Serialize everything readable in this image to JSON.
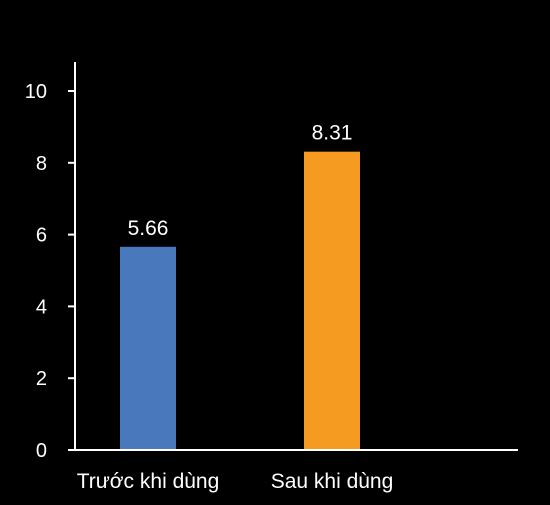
{
  "chart_data": {
    "type": "bar",
    "title": "",
    "xlabel": "",
    "ylabel": "",
    "categories": [
      "Trước khi dùng",
      "Sau khi dùng"
    ],
    "values": [
      5.66,
      8.31
    ],
    "data_labels": [
      "5.66",
      "8.31"
    ],
    "ylim": [
      0,
      10
    ],
    "yticks": [
      0,
      2,
      4,
      6,
      8,
      10
    ],
    "bar_colors": [
      "#4a78bd",
      "#f59b22"
    ],
    "background_color": "#000000",
    "axis_color": "#ffffff",
    "grid": false,
    "legend": "none"
  }
}
